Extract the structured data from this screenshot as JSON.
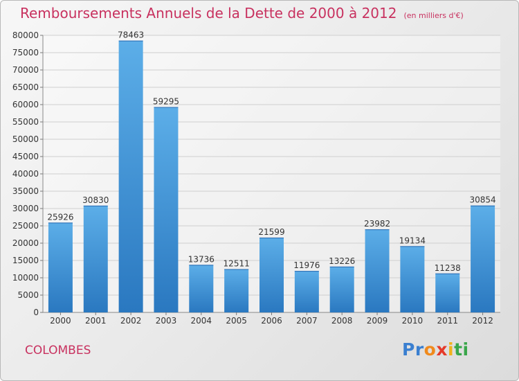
{
  "title": "Remboursements Annuels de la Dette de 2000 à 2012",
  "subtitle": "(en milliers d'€)",
  "place": "COLOMBES",
  "brand": {
    "letters": [
      "P",
      "r",
      "o",
      "x",
      "i",
      "t",
      "i"
    ],
    "colors": [
      "#3a7fd0",
      "#3a7fd0",
      "#f08a1c",
      "#e53a2a",
      "#f0b21c",
      "#39a64a",
      "#39a64a"
    ]
  },
  "chart_data": {
    "type": "bar",
    "categories": [
      "2000",
      "2001",
      "2002",
      "2003",
      "2004",
      "2005",
      "2006",
      "2007",
      "2008",
      "2009",
      "2010",
      "2011",
      "2012"
    ],
    "values": [
      25926,
      30830,
      78463,
      59295,
      13736,
      12511,
      21599,
      11976,
      13226,
      23982,
      19134,
      11238,
      30854
    ],
    "ylim": [
      0,
      80000
    ],
    "yticks": [
      0,
      5000,
      10000,
      15000,
      20000,
      25000,
      30000,
      35000,
      40000,
      45000,
      50000,
      55000,
      60000,
      65000,
      70000,
      75000,
      80000
    ],
    "bar_color": "#4a9ee0",
    "grid": true
  }
}
